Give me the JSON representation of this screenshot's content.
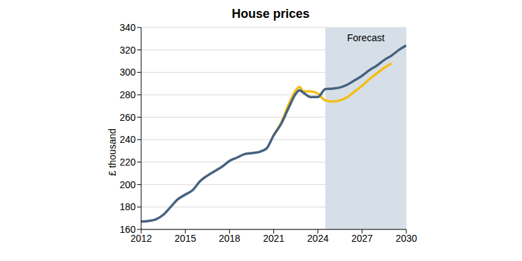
{
  "chart_data": {
    "type": "line",
    "title": "House prices",
    "y_label": "£ thousand",
    "x": [
      2012,
      2012.5,
      2013,
      2013.5,
      2014,
      2014.5,
      2015,
      2015.5,
      2016,
      2016.5,
      2017,
      2017.5,
      2018,
      2018.5,
      2019,
      2019.5,
      2020,
      2020.5,
      2021,
      2021.5,
      2022,
      2022.5,
      2022.75,
      2023,
      2023.5,
      2024,
      2024.5,
      2025,
      2025.5,
      2026,
      2026.5,
      2027,
      2027.5,
      2028,
      2028.5,
      2029,
      2029.5,
      2030
    ],
    "series": [
      {
        "color": "#47627f",
        "values": [
          167,
          167.5,
          169,
          173,
          180,
          187,
          191,
          195,
          203,
          208,
          212,
          216,
          221,
          224,
          227,
          228,
          229,
          232,
          244,
          254,
          268,
          281,
          284,
          282,
          278,
          278,
          285,
          285.5,
          286.5,
          289,
          293,
          297,
          302,
          306,
          311,
          315,
          320,
          324
        ]
      },
      {
        "color": "#f5be14",
        "values": [
          null,
          null,
          null,
          null,
          null,
          null,
          null,
          null,
          null,
          null,
          null,
          null,
          null,
          null,
          null,
          null,
          null,
          null,
          244,
          255,
          271,
          284,
          287,
          283,
          283,
          281,
          275,
          274,
          275,
          278,
          283,
          288,
          294,
          299,
          304,
          308,
          null,
          null
        ]
      }
    ],
    "xlim": [
      2012,
      2030
    ],
    "xticks": [
      2012,
      2015,
      2018,
      2021,
      2024,
      2027,
      2030
    ],
    "ylim": [
      160,
      340
    ],
    "yticks": [
      160,
      180,
      200,
      220,
      240,
      260,
      280,
      300,
      320,
      340
    ],
    "grid": true,
    "annotations": [
      {
        "text": "Forecast",
        "x": [
          2024.5,
          2030
        ]
      }
    ]
  }
}
